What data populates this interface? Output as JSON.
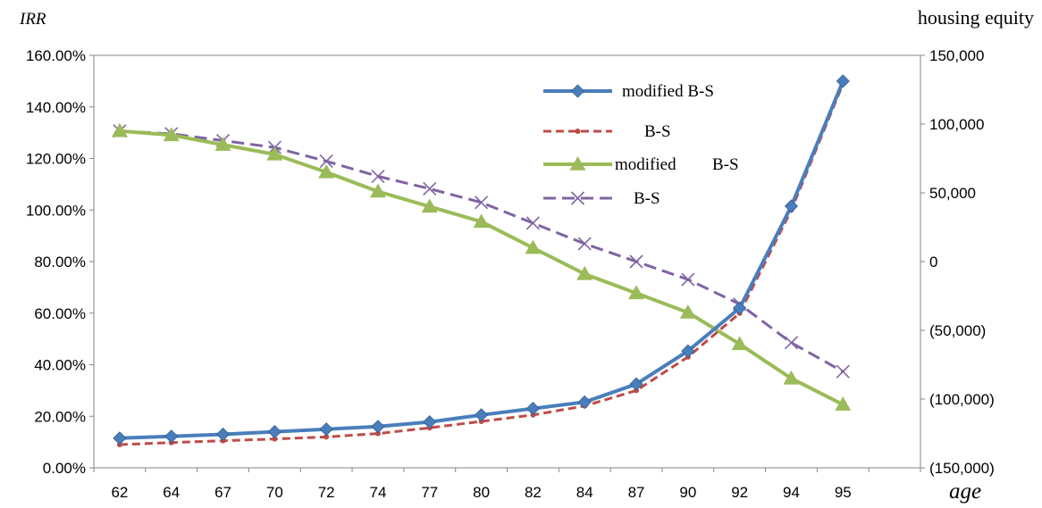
{
  "chart_data": {
    "type": "line",
    "left_axis_label": "IRR",
    "right_axis_label": "housing equity",
    "xlabel": "age",
    "x": [
      "62",
      "64",
      "67",
      "70",
      "72",
      "74",
      "77",
      "80",
      "82",
      "84",
      "87",
      "90",
      "92",
      "94",
      "95"
    ],
    "left_ylim": [
      0,
      160
    ],
    "right_ylim": [
      -150000,
      150000
    ],
    "left_ticks": [
      "0.00%",
      "20.00%",
      "40.00%",
      "60.00%",
      "80.00%",
      "100.00%",
      "120.00%",
      "140.00%",
      "160.00%"
    ],
    "right_ticks": [
      "(150,000)",
      "(100,000)",
      "(50,000)",
      "0",
      "50,000",
      "100,000",
      "150,000"
    ],
    "grid": false,
    "legend_position": "top-right-inside",
    "series": [
      {
        "name": "modified B-S",
        "axis": "left",
        "style": "solid",
        "marker": "diamond",
        "color": "#4A7EBB",
        "values": [
          11.5,
          12.2,
          13.0,
          14.0,
          15.0,
          16.0,
          17.8,
          20.5,
          23.0,
          25.5,
          32.5,
          45.3,
          62.0,
          101.5,
          150.0
        ]
      },
      {
        "name": "B-S",
        "axis": "left",
        "style": "dashed",
        "marker": "dot",
        "color": "#BE4B48",
        "values": [
          9.0,
          9.8,
          10.5,
          11.2,
          12.0,
          13.3,
          15.5,
          18.0,
          20.5,
          24.0,
          30.0,
          43.0,
          60.0,
          100.0,
          149.0
        ]
      },
      {
        "name": "modified",
        "label_suffix": "B-S",
        "axis": "right",
        "style": "solid",
        "marker": "triangle",
        "color": "#9BBB59",
        "values": [
          95000,
          92000,
          85000,
          78000,
          65000,
          51000,
          40000,
          29000,
          10000,
          -9000,
          -23000,
          -37000,
          -60000,
          -85000,
          -104000
        ]
      },
      {
        "name": "B-S",
        "axis": "right",
        "style": "dashed",
        "marker": "x",
        "color": "#7F64A2",
        "values": [
          95000,
          93000,
          88000,
          83000,
          73000,
          62000,
          53000,
          43000,
          28000,
          13000,
          0,
          -13000,
          -31000,
          -59000,
          -80000
        ]
      }
    ]
  }
}
